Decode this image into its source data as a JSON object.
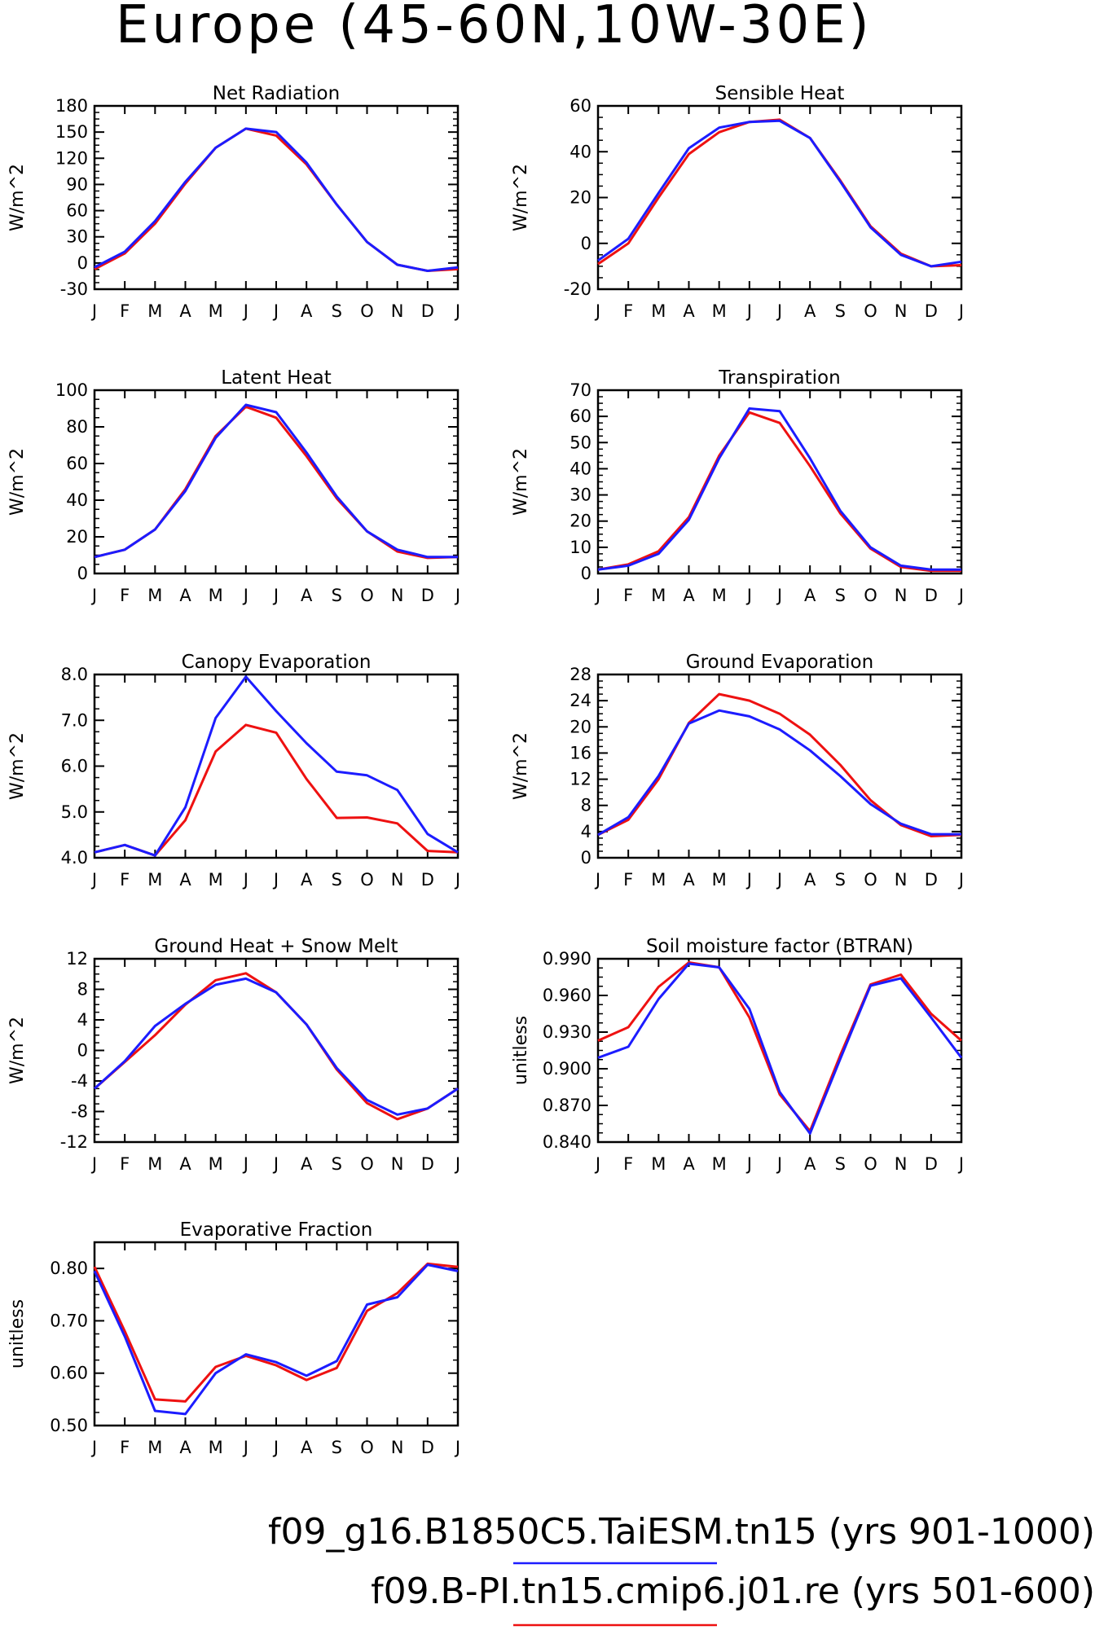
{
  "figure_title": "Europe (45-60N,10W-30E)",
  "months": [
    "J",
    "F",
    "M",
    "A",
    "M",
    "J",
    "J",
    "A",
    "S",
    "O",
    "N",
    "D",
    "J"
  ],
  "colors": {
    "run1": "#1c1cff",
    "run2": "#ee1111",
    "axis": "#000000"
  },
  "legend": [
    {
      "label": "f09_g16.B1850C5.TaiESM.tn15 (yrs 901-1000)",
      "color": "#1c1cff"
    },
    {
      "label": "f09.B-PI.tn15.cmip6.j01.re (yrs 501-600)",
      "color": "#ee1111"
    }
  ],
  "chart_data": [
    {
      "type": "line",
      "title": "Net Radiation",
      "ylabel": "W/m^2",
      "ylim": [
        -30,
        180
      ],
      "yticks": [
        -30,
        0,
        30,
        60,
        90,
        120,
        150,
        180
      ],
      "ytick_labels": [
        "-30",
        "0",
        "30",
        "60",
        "90",
        "120",
        "150",
        "180"
      ],
      "x": [
        "J",
        "F",
        "M",
        "A",
        "M",
        "J",
        "J",
        "A",
        "S",
        "O",
        "N",
        "D",
        "J"
      ],
      "series": [
        {
          "name": "f09_g16.B1850C5.TaiESM.tn15 (yrs 901-1000)",
          "color": "#1c1cff",
          "values": [
            -5,
            13,
            48,
            93,
            132,
            154,
            150,
            115,
            67,
            24,
            -2,
            -9,
            -5
          ]
        },
        {
          "name": "f09.B-PI.tn15.cmip6.j01.re (yrs 501-600)",
          "color": "#ee1111",
          "values": [
            -7,
            11,
            45,
            91,
            132,
            154,
            146,
            113,
            67,
            24,
            -2,
            -9,
            -7
          ]
        }
      ]
    },
    {
      "type": "line",
      "title": "Sensible Heat",
      "ylabel": "W/m^2",
      "ylim": [
        -20,
        60
      ],
      "yticks": [
        -20,
        0,
        20,
        40,
        60
      ],
      "ytick_labels": [
        "-20",
        "0",
        "20",
        "40",
        "60"
      ],
      "x": [
        "J",
        "F",
        "M",
        "A",
        "M",
        "J",
        "J",
        "A",
        "S",
        "O",
        "N",
        "D",
        "J"
      ],
      "series": [
        {
          "name": "f09_g16.B1850C5.TaiESM.tn15 (yrs 901-1000)",
          "color": "#1c1cff",
          "values": [
            -7.5,
            2,
            22,
            41.5,
            50.5,
            53,
            53.5,
            46,
            27,
            7,
            -5,
            -10,
            -8
          ]
        },
        {
          "name": "f09.B-PI.tn15.cmip6.j01.re (yrs 501-600)",
          "color": "#ee1111",
          "values": [
            -9,
            0,
            20,
            39,
            48.5,
            53,
            54,
            46,
            27.5,
            7.5,
            -4.5,
            -10,
            -9.5
          ]
        }
      ]
    },
    {
      "type": "line",
      "title": "Latent Heat",
      "ylabel": "W/m^2",
      "ylim": [
        0,
        100
      ],
      "yticks": [
        0,
        20,
        40,
        60,
        80,
        100
      ],
      "ytick_labels": [
        "0",
        "20",
        "40",
        "60",
        "80",
        "100"
      ],
      "x": [
        "J",
        "F",
        "M",
        "A",
        "M",
        "J",
        "J",
        "A",
        "S",
        "O",
        "N",
        "D",
        "J"
      ],
      "series": [
        {
          "name": "f09_g16.B1850C5.TaiESM.tn15 (yrs 901-1000)",
          "color": "#1c1cff",
          "values": [
            9,
            13,
            24,
            45,
            74,
            92,
            88,
            66,
            42,
            23,
            13,
            9,
            9
          ]
        },
        {
          "name": "f09.B-PI.tn15.cmip6.j01.re (yrs 501-600)",
          "color": "#ee1111",
          "values": [
            9,
            13,
            24,
            46,
            75,
            91,
            85,
            64,
            41,
            23,
            12,
            8.5,
            9
          ]
        }
      ]
    },
    {
      "type": "line",
      "title": "Transpiration",
      "ylabel": "W/m^2",
      "ylim": [
        0,
        70
      ],
      "yticks": [
        0,
        10,
        20,
        30,
        40,
        50,
        60,
        70
      ],
      "ytick_labels": [
        "0",
        "10",
        "20",
        "30",
        "40",
        "50",
        "60",
        "70"
      ],
      "x": [
        "J",
        "F",
        "M",
        "A",
        "M",
        "J",
        "J",
        "A",
        "S",
        "O",
        "N",
        "D",
        "J"
      ],
      "series": [
        {
          "name": "f09_g16.B1850C5.TaiESM.tn15 (yrs 901-1000)",
          "color": "#1c1cff",
          "values": [
            1.5,
            3,
            7.5,
            20.5,
            44,
            63,
            62,
            44,
            24,
            10,
            3,
            1.5,
            1.5
          ]
        },
        {
          "name": "f09.B-PI.tn15.cmip6.j01.re (yrs 501-600)",
          "color": "#ee1111",
          "values": [
            1.5,
            3.5,
            8.5,
            21.5,
            45,
            61.5,
            57.5,
            41,
            23,
            9.5,
            2.5,
            1,
            1
          ]
        }
      ]
    },
    {
      "type": "line",
      "title": "Canopy Evaporation",
      "ylabel": "W/m^2",
      "ylim": [
        4.0,
        8.0
      ],
      "yticks": [
        4,
        5,
        6,
        7,
        8
      ],
      "ytick_labels": [
        "4.0",
        "5.0",
        "6.0",
        "7.0",
        "8.0"
      ],
      "x": [
        "J",
        "F",
        "M",
        "A",
        "M",
        "J",
        "J",
        "A",
        "S",
        "O",
        "N",
        "D",
        "J"
      ],
      "series": [
        {
          "name": "f09_g16.B1850C5.TaiESM.tn15 (yrs 901-1000)",
          "color": "#1c1cff",
          "values": [
            4.12,
            4.28,
            4.05,
            5.1,
            7.05,
            7.95,
            7.2,
            6.5,
            5.88,
            5.8,
            5.48,
            4.52,
            4.12
          ]
        },
        {
          "name": "f09.B-PI.tn15.cmip6.j01.re (yrs 501-600)",
          "color": "#ee1111",
          "values": [
            4.12,
            4.28,
            4.05,
            4.82,
            6.32,
            6.9,
            6.73,
            5.72,
            4.87,
            4.88,
            4.75,
            4.15,
            4.12
          ]
        }
      ]
    },
    {
      "type": "line",
      "title": "Ground Evaporation",
      "ylabel": "W/m^2",
      "ylim": [
        0,
        28
      ],
      "yticks": [
        0,
        4,
        8,
        12,
        16,
        20,
        24,
        28
      ],
      "ytick_labels": [
        "0",
        "4",
        "8",
        "12",
        "16",
        "20",
        "24",
        "28"
      ],
      "x": [
        "J",
        "F",
        "M",
        "A",
        "M",
        "J",
        "J",
        "A",
        "S",
        "O",
        "N",
        "D",
        "J"
      ],
      "series": [
        {
          "name": "f09_g16.B1850C5.TaiESM.tn15 (yrs 901-1000)",
          "color": "#1c1cff",
          "values": [
            3.5,
            6.2,
            12.5,
            20.5,
            22.5,
            21.6,
            19.6,
            16.4,
            12.5,
            8.2,
            5.2,
            3.6,
            3.6
          ]
        },
        {
          "name": "f09.B-PI.tn15.cmip6.j01.re (yrs 501-600)",
          "color": "#ee1111",
          "values": [
            3.5,
            5.8,
            12,
            20.6,
            25,
            24,
            22,
            18.8,
            14.2,
            8.8,
            5,
            3.3,
            3.5
          ]
        }
      ]
    },
    {
      "type": "line",
      "title": "Ground Heat + Snow Melt",
      "ylabel": "W/m^2",
      "ylim": [
        -12,
        12
      ],
      "yticks": [
        -12,
        -8,
        -4,
        0,
        4,
        8,
        12
      ],
      "ytick_labels": [
        "-12",
        "-8",
        "-4",
        "0",
        "4",
        "8",
        "12"
      ],
      "x": [
        "J",
        "F",
        "M",
        "A",
        "M",
        "J",
        "J",
        "A",
        "S",
        "O",
        "N",
        "D",
        "J"
      ],
      "series": [
        {
          "name": "f09_g16.B1850C5.TaiESM.tn15 (yrs 901-1000)",
          "color": "#1c1cff",
          "values": [
            -5,
            -1.4,
            3.2,
            6.1,
            8.6,
            9.4,
            7.6,
            3.4,
            -2.3,
            -6.5,
            -8.4,
            -7.6,
            -5
          ]
        },
        {
          "name": "f09.B-PI.tn15.cmip6.j01.re (yrs 501-600)",
          "color": "#ee1111",
          "values": [
            -5,
            -1.5,
            2,
            6,
            9.2,
            10.1,
            7.6,
            3.4,
            -2.5,
            -6.9,
            -9,
            -7.6,
            -5
          ]
        }
      ]
    },
    {
      "type": "line",
      "title": "Soil moisture factor (BTRAN)",
      "ylabel": "unitless",
      "ylim": [
        0.84,
        0.99
      ],
      "yticks": [
        0.84,
        0.87,
        0.9,
        0.93,
        0.96,
        0.99
      ],
      "ytick_labels": [
        "0.840",
        "0.870",
        "0.900",
        "0.930",
        "0.960",
        "0.990"
      ],
      "x": [
        "J",
        "F",
        "M",
        "A",
        "M",
        "J",
        "J",
        "A",
        "S",
        "O",
        "N",
        "D",
        "J"
      ],
      "series": [
        {
          "name": "f09_g16.B1850C5.TaiESM.tn15 (yrs 901-1000)",
          "color": "#1c1cff",
          "values": [
            0.909,
            0.918,
            0.957,
            0.986,
            0.983,
            0.949,
            0.881,
            0.847,
            0.908,
            0.968,
            0.974,
            0.942,
            0.909
          ]
        },
        {
          "name": "f09.B-PI.tn15.cmip6.j01.re (yrs 501-600)",
          "color": "#ee1111",
          "values": [
            0.923,
            0.934,
            0.967,
            0.987,
            0.983,
            0.942,
            0.879,
            0.849,
            0.911,
            0.969,
            0.977,
            0.945,
            0.923
          ]
        }
      ]
    },
    {
      "type": "line",
      "title": "Evaporative Fraction",
      "ylabel": "unitless",
      "ylim": [
        0.5,
        0.85
      ],
      "yticks": [
        0.5,
        0.6,
        0.7,
        0.8
      ],
      "ytick_labels": [
        "0.50",
        "0.60",
        "0.70",
        "0.80"
      ],
      "x": [
        "J",
        "F",
        "M",
        "A",
        "M",
        "J",
        "J",
        "A",
        "S",
        "O",
        "N",
        "D",
        "J"
      ],
      "series": [
        {
          "name": "f09_g16.B1850C5.TaiESM.tn15 (yrs 901-1000)",
          "color": "#1c1cff",
          "values": [
            0.795,
            0.67,
            0.528,
            0.522,
            0.6,
            0.636,
            0.621,
            0.595,
            0.623,
            0.731,
            0.745,
            0.807,
            0.795
          ]
        },
        {
          "name": "f09.B-PI.tn15.cmip6.j01.re (yrs 501-600)",
          "color": "#ee1111",
          "values": [
            0.803,
            0.68,
            0.55,
            0.546,
            0.612,
            0.633,
            0.615,
            0.587,
            0.61,
            0.719,
            0.753,
            0.809,
            0.803
          ]
        }
      ]
    }
  ]
}
